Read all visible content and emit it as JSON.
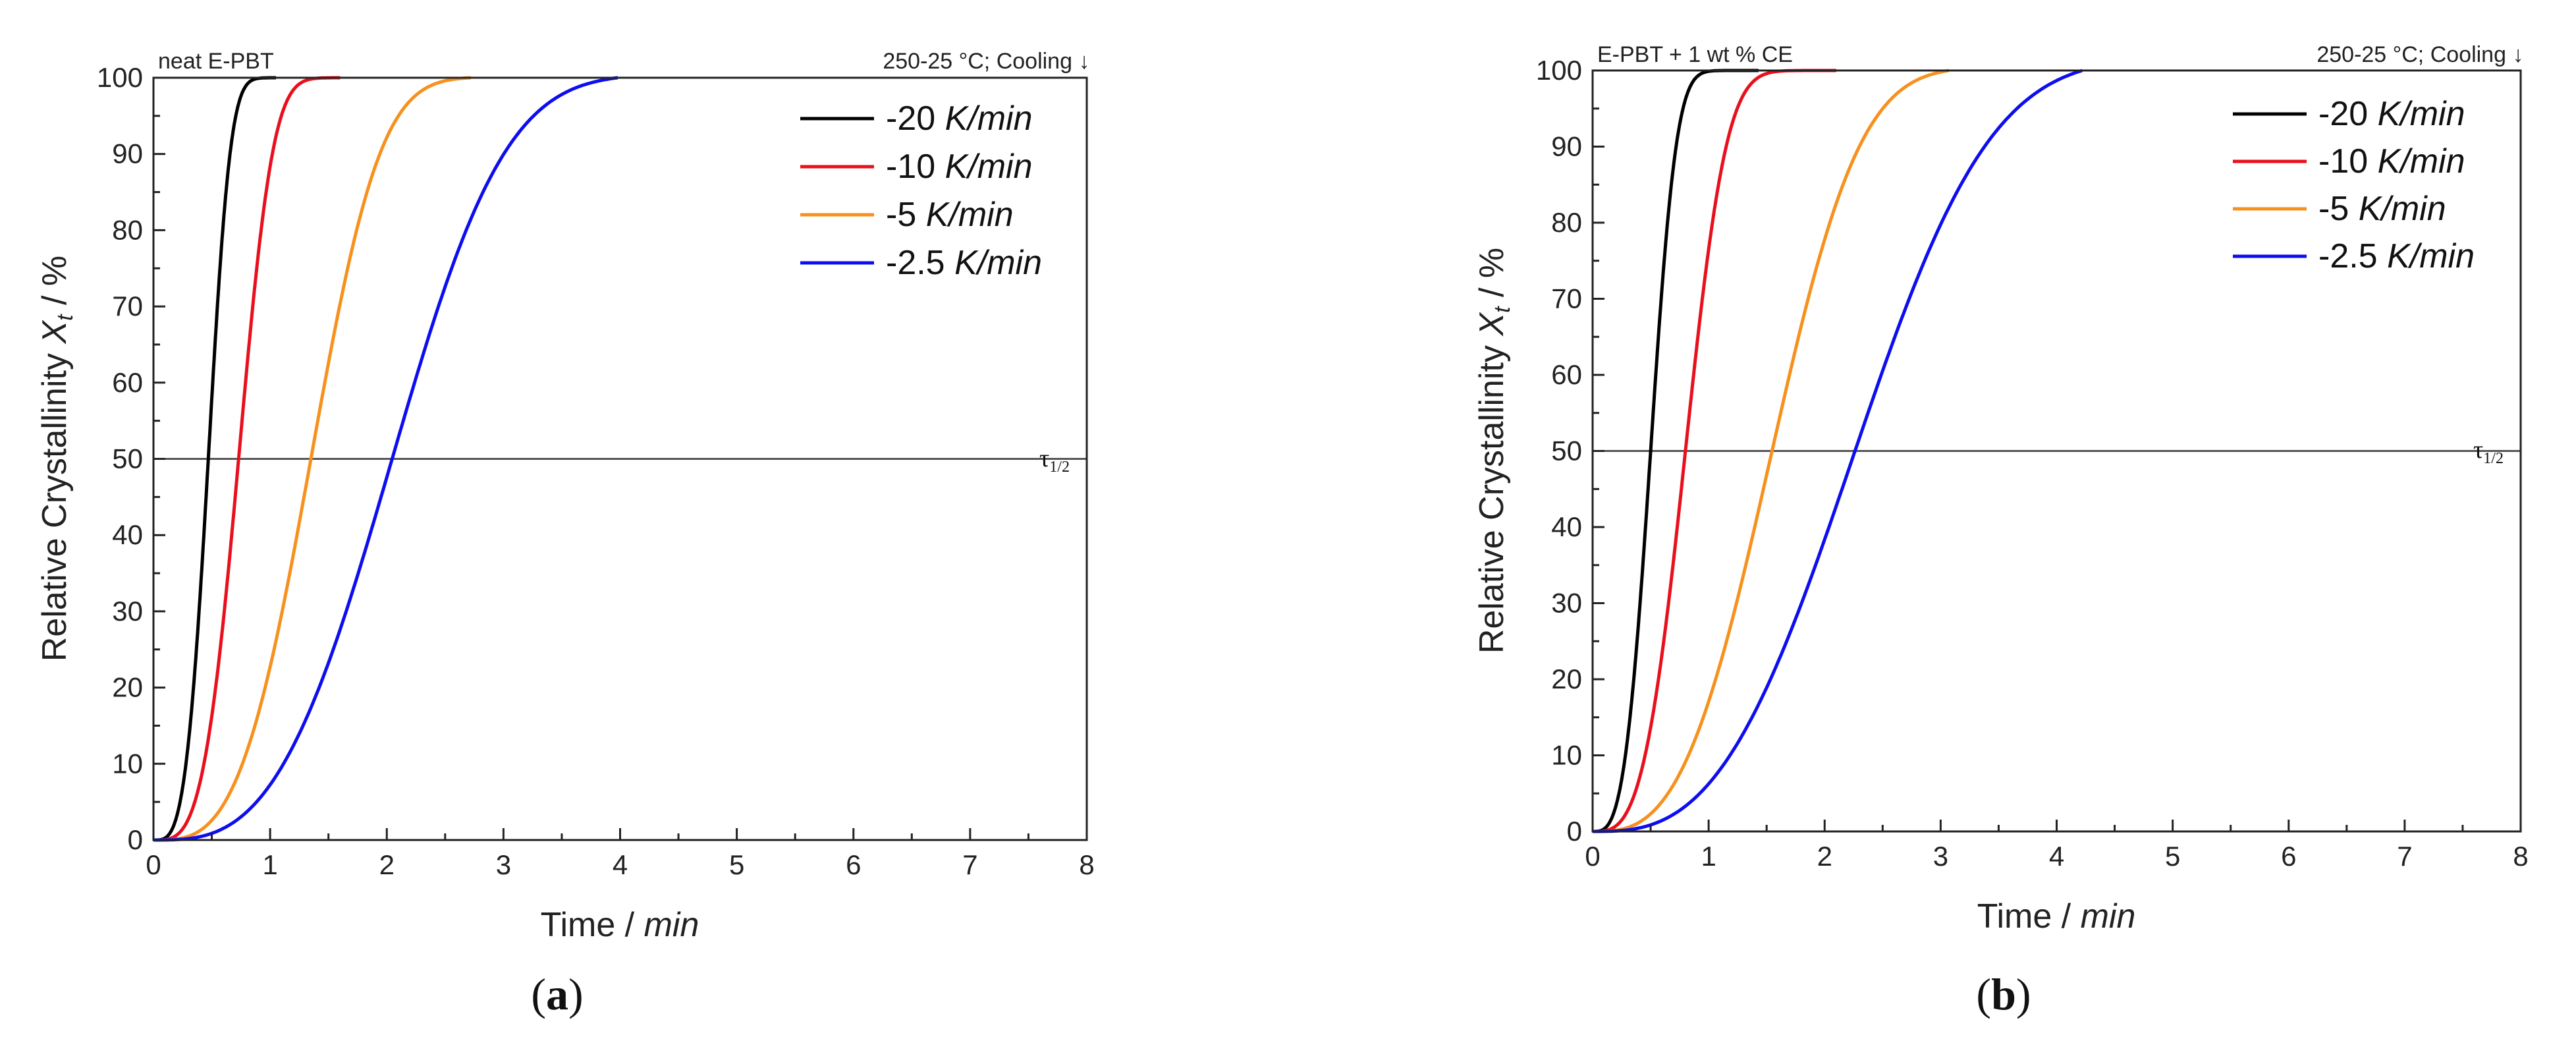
{
  "chart_data": [
    {
      "type": "line",
      "panel_label": "a",
      "header_left": "neat E-PBT",
      "header_right": "250-25 °C; Cooling",
      "xlabel": "Time",
      "xlabel_unit": "min",
      "ylabel": "Relative Crystallinity",
      "ylabel_symbol": "X",
      "ylabel_subscript": "t",
      "ylabel_unit": "%",
      "xlim": [
        0,
        8
      ],
      "ylim": [
        0,
        100
      ],
      "xticks": [
        0,
        1,
        2,
        3,
        4,
        5,
        6,
        7,
        8
      ],
      "yticks": [
        0,
        10,
        20,
        30,
        40,
        50,
        60,
        70,
        80,
        90,
        100
      ],
      "reference_line": {
        "y": 50,
        "label": "τ",
        "label_subscript": "1/2"
      },
      "series": [
        {
          "name": "-20",
          "unit": "K/min",
          "color": "#000000",
          "t_half": 0.47,
          "t_end": 1.05,
          "n": 3.6
        },
        {
          "name": "-10",
          "unit": "K/min",
          "color": "#e8101c",
          "t_half": 0.73,
          "t_end": 1.6,
          "n": 3.6
        },
        {
          "name": "-5",
          "unit": "K/min",
          "color": "#f7911e",
          "t_half": 1.35,
          "t_end": 2.72,
          "n": 3.3
        },
        {
          "name": "-2.5",
          "unit": "K/min",
          "color": "#0d0df0",
          "t_half": 2.05,
          "t_end": 3.98,
          "n": 3.1
        }
      ]
    },
    {
      "type": "line",
      "panel_label": "b",
      "header_left": "E-PBT + 1 wt % CE",
      "header_right": "250-25 °C; Cooling",
      "xlabel": "Time",
      "xlabel_unit": "min",
      "ylabel": "Relative Crystallinity",
      "ylabel_symbol": "X",
      "ylabel_subscript": "t",
      "ylabel_unit": "%",
      "xlim": [
        0,
        8
      ],
      "ylim": [
        0,
        100
      ],
      "xticks": [
        0,
        1,
        2,
        3,
        4,
        5,
        6,
        7,
        8
      ],
      "yticks": [
        0,
        10,
        20,
        30,
        40,
        50,
        60,
        70,
        80,
        90,
        100
      ],
      "reference_line": {
        "y": 50,
        "label": "τ",
        "label_subscript": "1/2"
      },
      "series": [
        {
          "name": "-20",
          "unit": "K/min",
          "color": "#000000",
          "t_half": 0.5,
          "t_end": 1.43,
          "n": 3.3
        },
        {
          "name": "-10",
          "unit": "K/min",
          "color": "#e8101c",
          "t_half": 0.8,
          "t_end": 2.1,
          "n": 3.3
        },
        {
          "name": "-5",
          "unit": "K/min",
          "color": "#f7911e",
          "t_half": 1.55,
          "t_end": 3.07,
          "n": 3.0
        },
        {
          "name": "-2.5",
          "unit": "K/min",
          "color": "#0d0df0",
          "t_half": 2.28,
          "t_end": 4.22,
          "n": 2.9
        }
      ]
    }
  ]
}
